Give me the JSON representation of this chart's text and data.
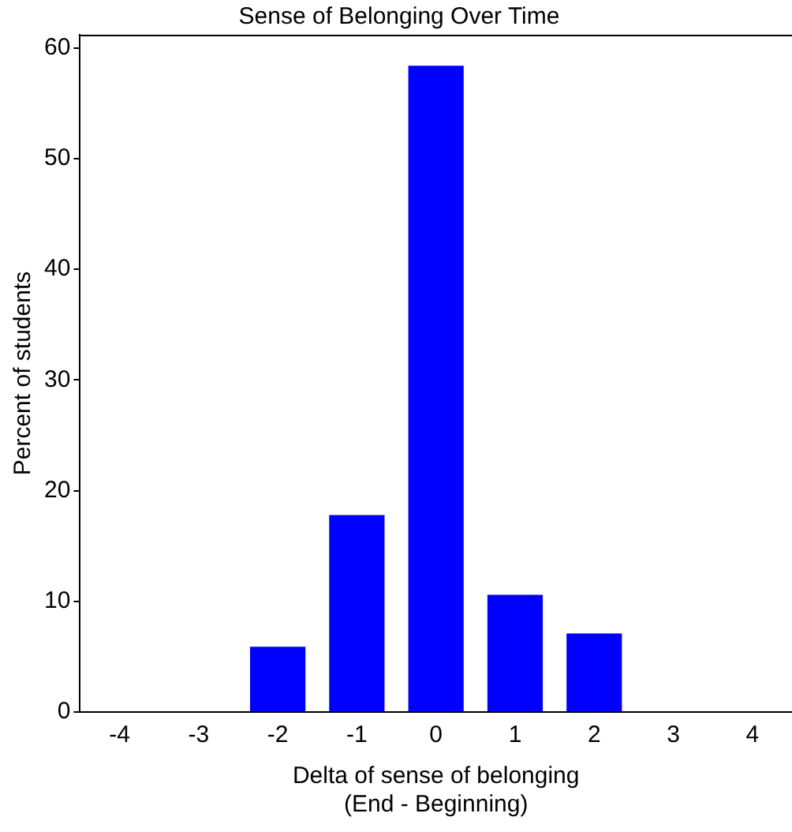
{
  "chart_data": {
    "type": "bar",
    "title": "Sense of Belonging Over Time",
    "xlabel": "Delta of sense of belonging\n(End - Beginning)",
    "ylabel": "Percent of students",
    "categories": [
      "-4",
      "-3",
      "-2",
      "-1",
      "0",
      "1",
      "2",
      "3",
      "4"
    ],
    "values": [
      0,
      0,
      5.9,
      17.8,
      58.4,
      10.6,
      7.1,
      0,
      0
    ],
    "color": "#0000ff",
    "ylim": [
      0,
      61.2
    ],
    "yticks": [
      0,
      10,
      20,
      30,
      40,
      50,
      60
    ],
    "grid": false,
    "legend": false
  }
}
